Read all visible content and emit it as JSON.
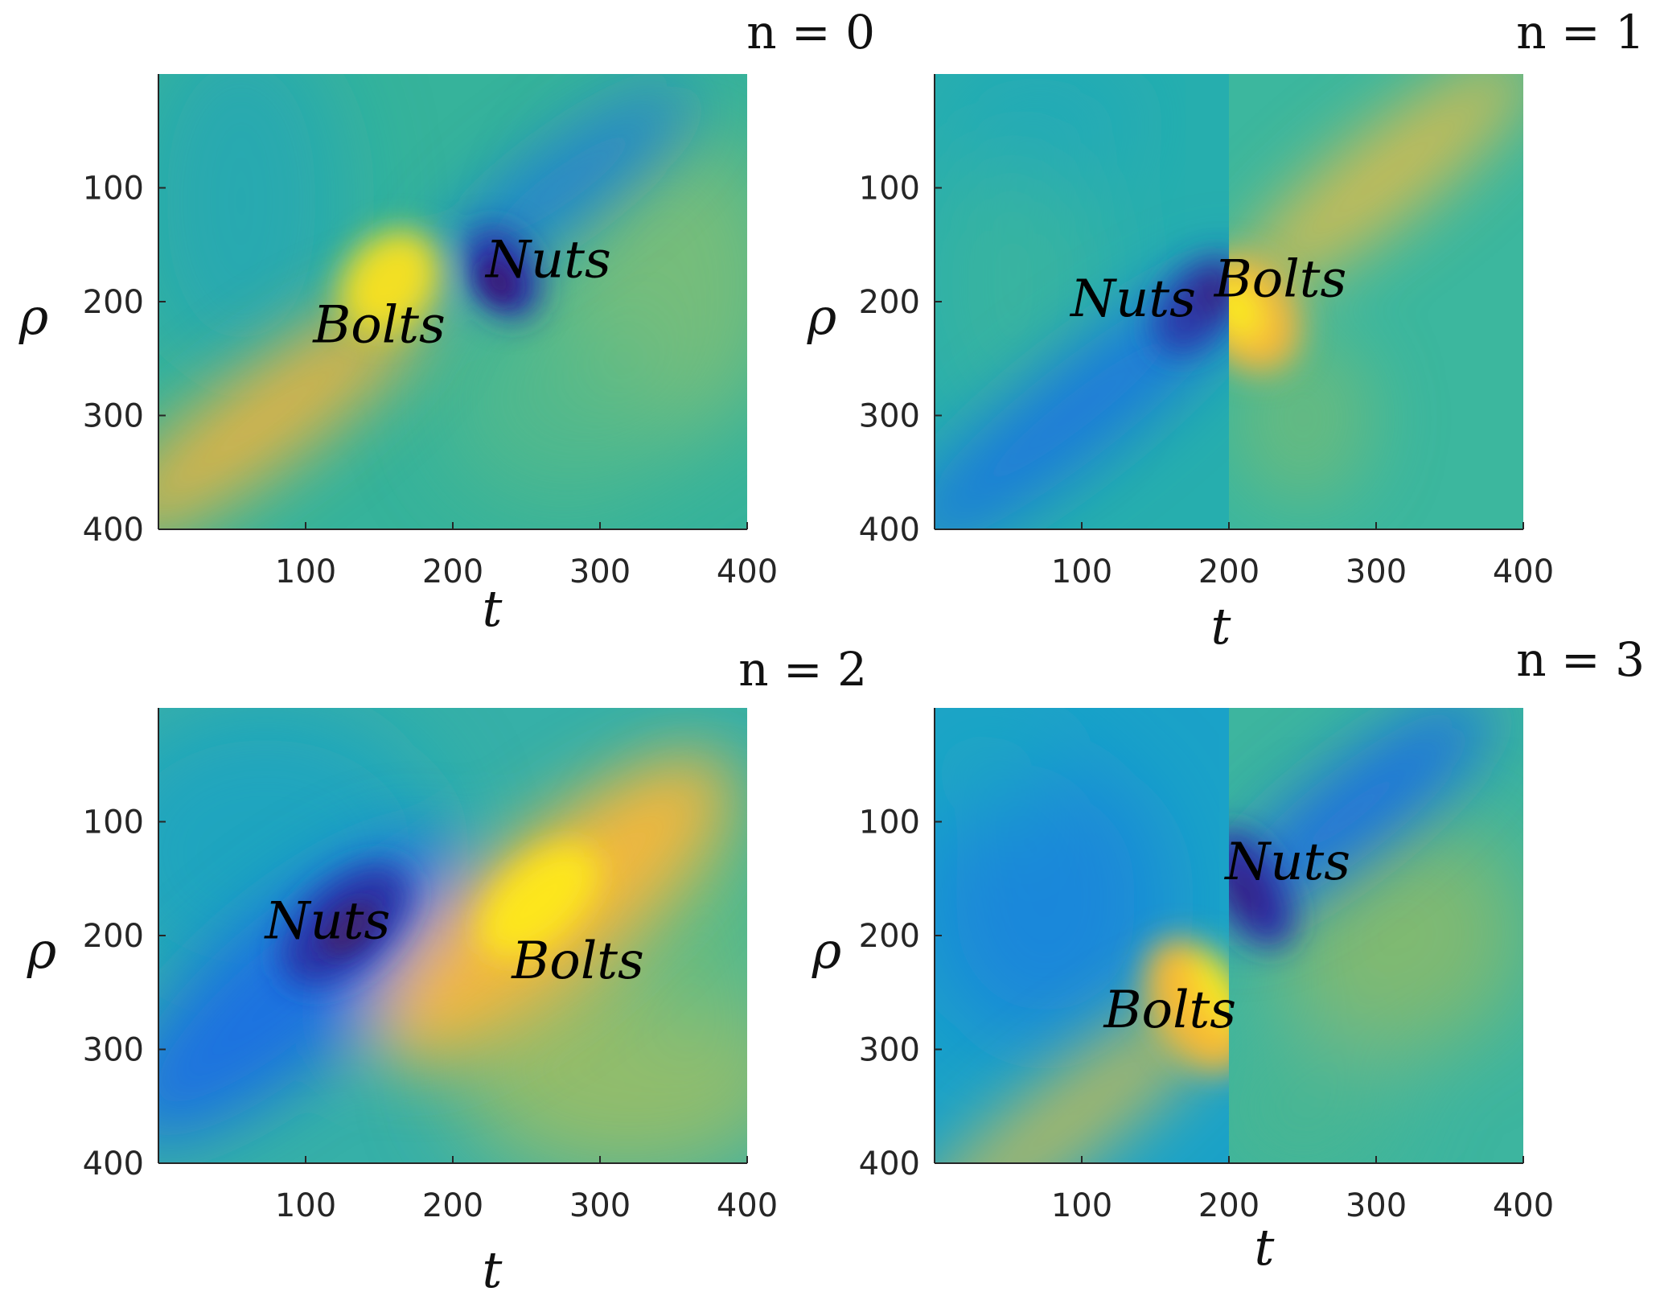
{
  "chart_data": [
    {
      "type": "heatmap",
      "title": "n = 0",
      "xlabel": "t",
      "ylabel": "ρ",
      "xlim": [
        0,
        400
      ],
      "ylim": [
        0,
        400
      ],
      "y_reversed": true,
      "xticks": [
        100,
        200,
        300,
        400
      ],
      "yticks": [
        100,
        200,
        300,
        400
      ],
      "colormap": "parula",
      "annotations": [
        {
          "text": "Bolts",
          "t": 150,
          "rho": 220
        },
        {
          "text": "Nuts",
          "t": 265,
          "rho": 163
        }
      ]
    },
    {
      "type": "heatmap",
      "title": "n = 1",
      "xlabel": "t",
      "ylabel": "ρ",
      "xlim": [
        0,
        400
      ],
      "ylim": [
        0,
        400
      ],
      "y_reversed": true,
      "xticks": [
        100,
        200,
        300,
        400
      ],
      "yticks": [
        100,
        200,
        300,
        400
      ],
      "colormap": "parula",
      "annotations": [
        {
          "text": "Nuts",
          "t": 135,
          "rho": 197
        },
        {
          "text": "Bolts",
          "t": 235,
          "rho": 180
        }
      ]
    },
    {
      "type": "heatmap",
      "title": "n = 2",
      "xlabel": "t",
      "ylabel": "ρ",
      "xlim": [
        0,
        400
      ],
      "ylim": [
        0,
        400
      ],
      "y_reversed": true,
      "xticks": [
        100,
        200,
        300,
        400
      ],
      "yticks": [
        100,
        200,
        300,
        400
      ],
      "colormap": "parula",
      "annotations": [
        {
          "text": "Nuts",
          "t": 115,
          "rho": 187
        },
        {
          "text": "Bolts",
          "t": 285,
          "rho": 222
        }
      ]
    },
    {
      "type": "heatmap",
      "title": "n = 3",
      "xlabel": "t",
      "ylabel": "ρ",
      "xlim": [
        0,
        400
      ],
      "ylim": [
        0,
        400
      ],
      "y_reversed": true,
      "xticks": [
        100,
        200,
        300,
        400
      ],
      "yticks": [
        100,
        200,
        300,
        400
      ],
      "colormap": "parula",
      "annotations": [
        {
          "text": "Nuts",
          "t": 240,
          "rho": 135
        },
        {
          "text": "Bolts",
          "t": 160,
          "rho": 265
        }
      ]
    }
  ]
}
